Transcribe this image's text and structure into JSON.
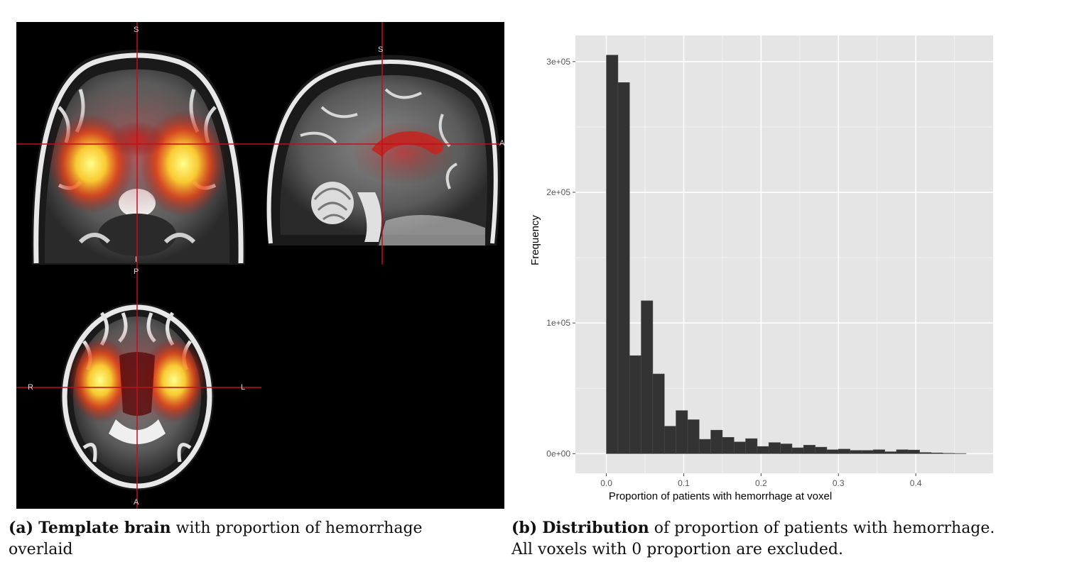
{
  "brain": {
    "orientation_labels": {
      "coronal_top": "S",
      "coronal_bottom": "I",
      "sagittal_top": "S",
      "sagittal_right": "A",
      "axial_top": "P",
      "axial_bottom": "A",
      "axial_left": "R",
      "axial_right": "L"
    }
  },
  "chart_data": {
    "type": "bar",
    "xlabel": "Proportion of patients with hemorrhage at voxel",
    "ylabel": "Frequency",
    "xlim": [
      -0.04,
      0.5
    ],
    "ylim": [
      -15000,
      320000
    ],
    "x_ticks": [
      0.0,
      0.1,
      0.2,
      0.3,
      0.4
    ],
    "x_tick_labels": [
      "0.0",
      "0.1",
      "0.2",
      "0.3",
      "0.4"
    ],
    "y_ticks": [
      0,
      100000,
      200000,
      300000
    ],
    "y_tick_labels": [
      "0e+00",
      "1e+05",
      "2e+05",
      "3e+05"
    ],
    "grid": true,
    "bin_width": 0.015,
    "bin_starts": [
      0.0,
      0.015,
      0.03,
      0.045,
      0.06,
      0.075,
      0.09,
      0.105,
      0.12,
      0.135,
      0.15,
      0.165,
      0.18,
      0.195,
      0.21,
      0.225,
      0.24,
      0.255,
      0.27,
      0.285,
      0.3,
      0.315,
      0.33,
      0.345,
      0.36,
      0.375,
      0.39,
      0.405,
      0.42,
      0.435,
      0.45
    ],
    "values": [
      305000,
      284000,
      75000,
      117000,
      61000,
      21000,
      33000,
      26000,
      11000,
      18000,
      12500,
      9000,
      11500,
      5500,
      8500,
      7500,
      4500,
      6500,
      5000,
      3000,
      3500,
      2500,
      2500,
      3000,
      1500,
      3000,
      2800,
      900,
      600,
      300,
      150
    ]
  },
  "captions": {
    "a_label": "(a)",
    "a_bold": "Template brain",
    "a_rest": "with proportion of hemorrhage overlaid",
    "b_label": "(b)",
    "b_bold": "Distribution",
    "b_rest": "of proportion of patients with hemorrhage. All voxels with 0 proportion are excluded."
  },
  "colors": {
    "panel_bg": "#000000",
    "crosshair": "#c0101a",
    "bar_fill": "#333333",
    "plot_bg": "#e5e5e5",
    "grid": "#ffffff"
  }
}
